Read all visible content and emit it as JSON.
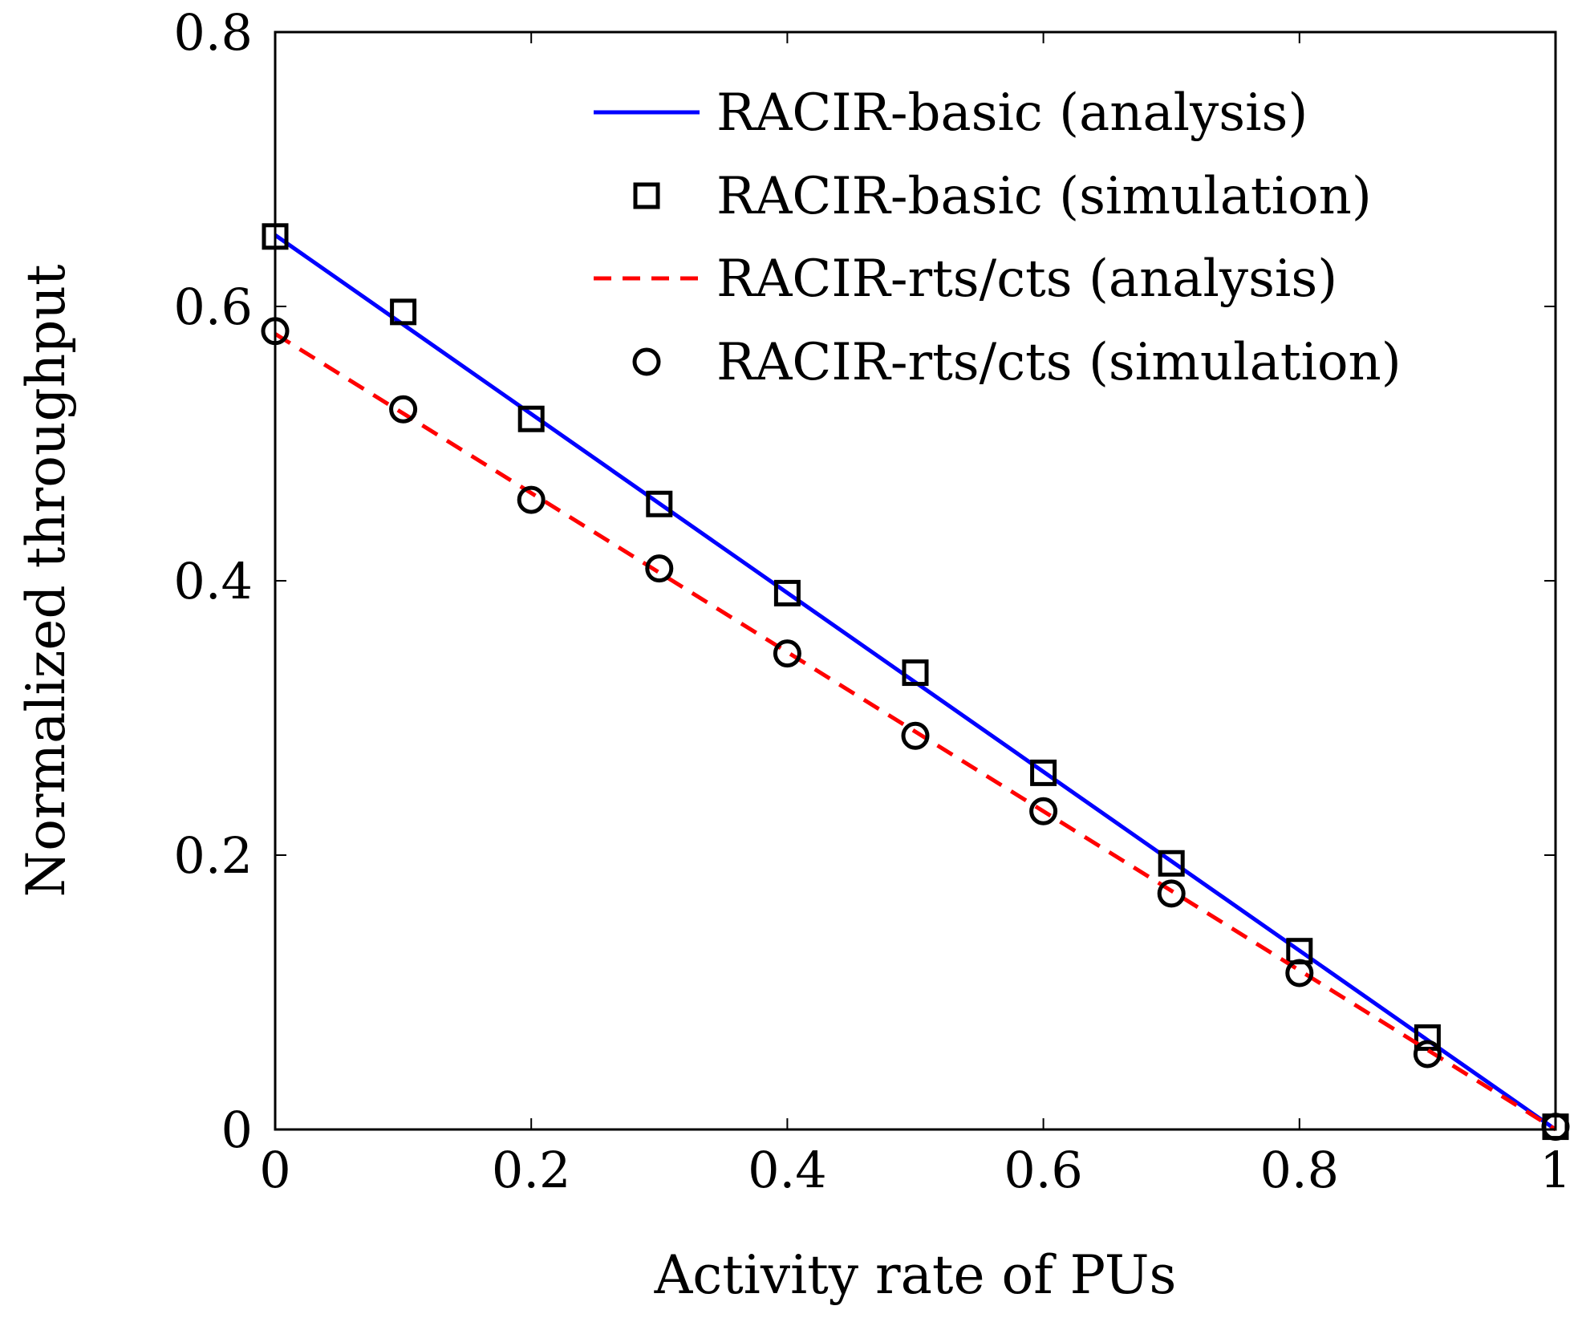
{
  "chart_data": {
    "type": "line",
    "title": "",
    "xlabel": "Activity rate of PUs",
    "ylabel": "Normalized throughput",
    "xlim": [
      0,
      1
    ],
    "ylim": [
      0,
      0.8
    ],
    "x_ticks": [
      "0",
      "0.2",
      "0.4",
      "0.6",
      "0.8",
      "1"
    ],
    "x_tick_values": [
      0,
      0.2,
      0.4,
      0.6,
      0.8,
      1
    ],
    "y_ticks": [
      "0",
      "0.2",
      "0.4",
      "0.6",
      "0.8"
    ],
    "y_tick_values": [
      0,
      0.2,
      0.4,
      0.6,
      0.8
    ],
    "grid": false,
    "legend_position": "top-right",
    "series": [
      {
        "name": "RACIR-basic (analysis)",
        "style": "line",
        "dash": "solid",
        "color": "#0000ff",
        "x": [
          0,
          1
        ],
        "y": [
          0.652,
          0.0
        ]
      },
      {
        "name": "RACIR-basic (simulation)",
        "style": "marker",
        "marker": "square",
        "color": "#000000",
        "x": [
          0,
          0.1,
          0.2,
          0.3,
          0.4,
          0.5,
          0.6,
          0.7,
          0.8,
          0.9,
          1.0
        ],
        "y": [
          0.651,
          0.596,
          0.518,
          0.456,
          0.391,
          0.333,
          0.26,
          0.194,
          0.13,
          0.067,
          0.002
        ]
      },
      {
        "name": "RACIR-rts/cts (analysis)",
        "style": "line",
        "dash": "dashed",
        "color": "#ff0000",
        "x": [
          0,
          1
        ],
        "y": [
          0.58,
          0.0
        ]
      },
      {
        "name": "RACIR-rts/cts (simulation)",
        "style": "marker",
        "marker": "circle",
        "color": "#000000",
        "x": [
          0,
          0.1,
          0.2,
          0.3,
          0.4,
          0.5,
          0.6,
          0.7,
          0.8,
          0.9,
          1.0
        ],
        "y": [
          0.582,
          0.525,
          0.459,
          0.409,
          0.347,
          0.287,
          0.232,
          0.172,
          0.114,
          0.055,
          0.002
        ]
      }
    ]
  }
}
